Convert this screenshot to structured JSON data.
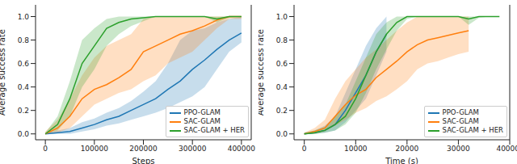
{
  "chart_data": [
    {
      "type": "line",
      "x_label": "Steps",
      "y_label": "Average success rate",
      "legend": "lower right",
      "x": [
        0,
        25000,
        50000,
        75000,
        100000,
        125000,
        150000,
        175000,
        200000,
        225000,
        250000,
        275000,
        300000,
        325000,
        350000,
        375000,
        400000
      ],
      "xlim": [
        -20000,
        420000
      ],
      "xticks": [
        0,
        100000,
        200000,
        300000,
        400000
      ],
      "ylim": [
        -0.05,
        1.1
      ],
      "yticks": [
        {
          "value": 0,
          "label": "0.0"
        },
        {
          "value": 0.2,
          "label": "0.2"
        },
        {
          "value": 0.4,
          "label": "0.4"
        },
        {
          "value": 0.6,
          "label": "0.6"
        },
        {
          "value": 0.8,
          "label": "0.8"
        },
        {
          "value": 1,
          "label": "1.0"
        }
      ],
      "series": [
        {
          "name": "PPO-GLAM",
          "color": "#1f77b4",
          "values": [
            0,
            0.01,
            0.02,
            0.05,
            0.08,
            0.12,
            0.15,
            0.2,
            0.25,
            0.3,
            0.38,
            0.45,
            0.55,
            0.63,
            0.72,
            0.8,
            0.86
          ],
          "lower": [
            0,
            0,
            0,
            0.02,
            0.04,
            0.07,
            0.09,
            0.12,
            0.15,
            0.18,
            0.22,
            0.27,
            0.32,
            0.4,
            0.55,
            0.7,
            0.78
          ],
          "upper": [
            0.01,
            0.03,
            0.05,
            0.1,
            0.13,
            0.18,
            0.22,
            0.28,
            0.36,
            0.45,
            0.6,
            0.8,
            0.88,
            0.9,
            0.95,
            0.98,
            1
          ]
        },
        {
          "name": "SAC-GLAM",
          "color": "#ff7f0e",
          "values": [
            0,
            0.05,
            0.15,
            0.3,
            0.38,
            0.42,
            0.48,
            0.55,
            0.7,
            0.75,
            0.8,
            0.85,
            0.88,
            0.92,
            0.97,
            1,
            1
          ],
          "lower": [
            0,
            0.01,
            0.05,
            0.15,
            0.25,
            0.3,
            0.35,
            0.38,
            0.45,
            0.5,
            0.6,
            0.65,
            0.7,
            0.8,
            0.9,
            0.98,
            0.98
          ],
          "upper": [
            0.02,
            0.12,
            0.3,
            0.5,
            0.65,
            0.75,
            0.8,
            0.85,
            0.98,
            1,
            1,
            1,
            1,
            1,
            1,
            1,
            1
          ]
        },
        {
          "name": "SAC-GLAM + HER",
          "color": "#2ca02c",
          "values": [
            0,
            0.08,
            0.3,
            0.6,
            0.75,
            0.9,
            0.95,
            0.98,
            0.99,
            1,
            1,
            1,
            1,
            1,
            0.98,
            1,
            1
          ],
          "lower": [
            0,
            0.03,
            0.15,
            0.4,
            0.55,
            0.75,
            0.85,
            0.92,
            0.96,
            1,
            1,
            1,
            1,
            1,
            0.95,
            0.99,
            1
          ],
          "upper": [
            0.01,
            0.15,
            0.45,
            0.8,
            0.9,
            0.98,
            1,
            1,
            1,
            1,
            1,
            1,
            1,
            1,
            1,
            1,
            1
          ]
        }
      ]
    },
    {
      "type": "line",
      "x_label": "Time (s)",
      "y_label": "Average success rate",
      "legend": "lower right",
      "x": [
        0,
        2000,
        4000,
        6000,
        8000,
        10000,
        12000,
        14000,
        16000,
        18000,
        20000,
        22000,
        24000,
        26000,
        28000,
        30000,
        32000,
        34000,
        36000,
        38000
      ],
      "xlim": [
        -2000,
        40000
      ],
      "xticks": [
        0,
        10000,
        20000,
        30000,
        40000
      ],
      "ylim": [
        -0.05,
        1.1
      ],
      "yticks": [
        {
          "value": 0,
          "label": "0.0"
        },
        {
          "value": 0.2,
          "label": "0.2"
        },
        {
          "value": 0.4,
          "label": "0.4"
        },
        {
          "value": 0.6,
          "label": "0.6"
        },
        {
          "value": 0.8,
          "label": "0.8"
        },
        {
          "value": 1,
          "label": "1.0"
        }
      ],
      "series": [
        {
          "name": "PPO-GLAM",
          "color": "#1f77b4",
          "values": [
            0,
            0.01,
            0.03,
            0.08,
            0.2,
            0.35,
            0.5,
            0.7,
            0.85,
            null,
            null,
            null,
            null,
            null,
            null,
            null,
            null,
            null,
            null,
            null
          ],
          "lower": [
            0,
            0,
            0.01,
            0.03,
            0.1,
            0.2,
            0.3,
            0.5,
            0.7,
            null,
            null,
            null,
            null,
            null,
            null,
            null,
            null,
            null,
            null,
            null
          ],
          "upper": [
            0.01,
            0.03,
            0.07,
            0.15,
            0.35,
            0.55,
            0.75,
            0.9,
            1,
            null,
            null,
            null,
            null,
            null,
            null,
            null,
            null,
            null,
            null,
            null
          ]
        },
        {
          "name": "SAC-GLAM",
          "color": "#ff7f0e",
          "values": [
            0,
            0.02,
            0.05,
            0.15,
            0.25,
            0.33,
            0.38,
            0.48,
            0.55,
            0.62,
            0.7,
            0.76,
            0.8,
            0.82,
            0.84,
            0.86,
            0.88,
            null,
            null,
            null
          ],
          "lower": [
            0,
            0,
            0.02,
            0.07,
            0.12,
            0.18,
            0.22,
            0.28,
            0.32,
            0.38,
            0.45,
            0.55,
            0.6,
            0.62,
            0.65,
            0.68,
            0.7,
            null,
            null,
            null
          ],
          "upper": [
            0.01,
            0.05,
            0.12,
            0.3,
            0.45,
            0.55,
            0.65,
            0.72,
            0.8,
            0.88,
            0.95,
            1,
            1,
            1,
            1,
            1,
            1,
            null,
            null,
            null
          ]
        },
        {
          "name": "SAC-GLAM + HER",
          "color": "#2ca02c",
          "values": [
            0,
            0.01,
            0.03,
            0.08,
            0.15,
            0.3,
            0.5,
            0.7,
            0.85,
            0.95,
            1,
            1,
            1,
            1,
            1,
            1,
            0.98,
            1,
            1,
            1
          ],
          "lower": [
            0,
            0,
            0.01,
            0.03,
            0.08,
            0.18,
            0.35,
            0.55,
            0.72,
            0.88,
            0.98,
            1,
            1,
            1,
            1,
            1,
            0.93,
            0.99,
            1,
            1
          ],
          "upper": [
            0.01,
            0.03,
            0.06,
            0.15,
            0.25,
            0.45,
            0.65,
            0.85,
            0.95,
            1,
            1,
            1,
            1,
            1,
            1,
            1,
            1,
            1,
            1,
            1
          ]
        }
      ]
    }
  ]
}
